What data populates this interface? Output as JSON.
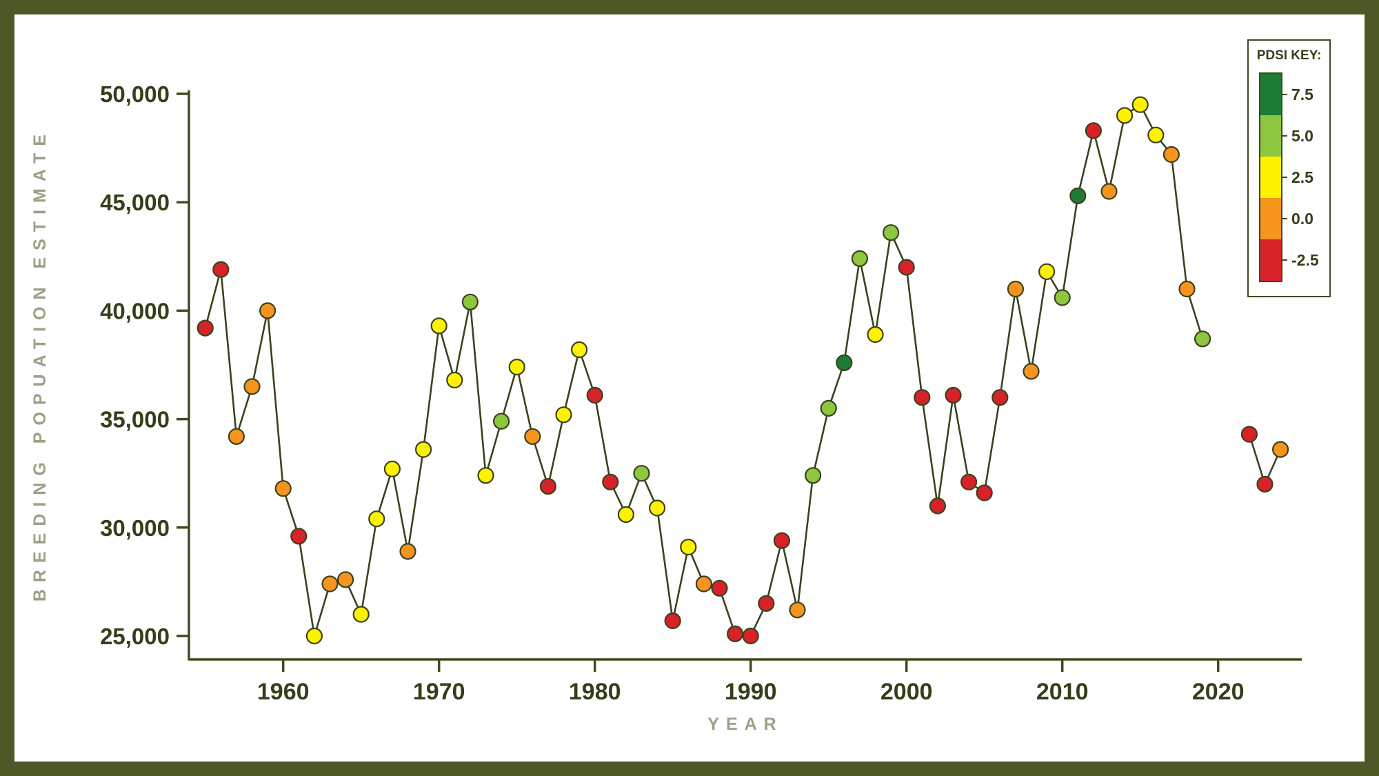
{
  "chart_data": {
    "type": "line",
    "xlabel": "YEAR",
    "ylabel": "BREEDING POPUATION ESTIMATE",
    "xlim": [
      1954,
      2025
    ],
    "ylim": [
      24000,
      51000
    ],
    "grid": false,
    "x_ticks": [
      1960,
      1970,
      1980,
      1990,
      2000,
      2010,
      2020
    ],
    "x_tick_labels": [
      "1960",
      "1970",
      "1980",
      "1990",
      "2000",
      "2010",
      "2020"
    ],
    "y_ticks": [
      25000,
      30000,
      35000,
      40000,
      45000,
      50000
    ],
    "y_tick_labels": [
      "25,000",
      "30,000",
      "35,000",
      "40,000",
      "45,000",
      "50,000"
    ],
    "legend": {
      "title": "PDSI KEY:",
      "position": "top-right",
      "entries": [
        {
          "label": "7.5",
          "color": "darkgreen"
        },
        {
          "label": "5.0",
          "color": "lightgreen"
        },
        {
          "label": "2.5",
          "color": "yellow"
        },
        {
          "label": "0.0",
          "color": "orange"
        },
        {
          "label": "-2.5",
          "color": "red"
        }
      ]
    },
    "style": {
      "axis": "#3f4a20",
      "line": "#3a421e",
      "tick_text": "#333f1a",
      "title_text": "#98a287",
      "frame": "#4d5826",
      "palette": {
        "darkgreen": "#1e7b34",
        "lightgreen": "#8dc63f",
        "yellow": "#fff200",
        "orange": "#f7941d",
        "red": "#d7222a"
      }
    },
    "points": [
      {
        "year": 1955,
        "value": 39200,
        "pdsi": "red"
      },
      {
        "year": 1956,
        "value": 41900,
        "pdsi": "red"
      },
      {
        "year": 1957,
        "value": 34200,
        "pdsi": "orange"
      },
      {
        "year": 1958,
        "value": 36500,
        "pdsi": "orange"
      },
      {
        "year": 1959,
        "value": 40000,
        "pdsi": "orange"
      },
      {
        "year": 1960,
        "value": 31800,
        "pdsi": "orange"
      },
      {
        "year": 1961,
        "value": 29600,
        "pdsi": "red"
      },
      {
        "year": 1962,
        "value": 25000,
        "pdsi": "yellow"
      },
      {
        "year": 1963,
        "value": 27400,
        "pdsi": "orange"
      },
      {
        "year": 1964,
        "value": 27600,
        "pdsi": "orange"
      },
      {
        "year": 1965,
        "value": 26000,
        "pdsi": "yellow"
      },
      {
        "year": 1966,
        "value": 30400,
        "pdsi": "yellow"
      },
      {
        "year": 1967,
        "value": 32700,
        "pdsi": "yellow"
      },
      {
        "year": 1968,
        "value": 28900,
        "pdsi": "orange"
      },
      {
        "year": 1969,
        "value": 33600,
        "pdsi": "yellow"
      },
      {
        "year": 1970,
        "value": 39300,
        "pdsi": "yellow"
      },
      {
        "year": 1971,
        "value": 36800,
        "pdsi": "yellow"
      },
      {
        "year": 1972,
        "value": 40400,
        "pdsi": "lightgreen"
      },
      {
        "year": 1973,
        "value": 32400,
        "pdsi": "yellow"
      },
      {
        "year": 1974,
        "value": 34900,
        "pdsi": "lightgreen"
      },
      {
        "year": 1975,
        "value": 37400,
        "pdsi": "yellow"
      },
      {
        "year": 1976,
        "value": 34200,
        "pdsi": "orange"
      },
      {
        "year": 1977,
        "value": 31900,
        "pdsi": "red"
      },
      {
        "year": 1978,
        "value": 35200,
        "pdsi": "yellow"
      },
      {
        "year": 1979,
        "value": 38200,
        "pdsi": "yellow"
      },
      {
        "year": 1980,
        "value": 36100,
        "pdsi": "red"
      },
      {
        "year": 1981,
        "value": 32100,
        "pdsi": "red"
      },
      {
        "year": 1982,
        "value": 30600,
        "pdsi": "yellow"
      },
      {
        "year": 1983,
        "value": 32500,
        "pdsi": "lightgreen"
      },
      {
        "year": 1984,
        "value": 30900,
        "pdsi": "yellow"
      },
      {
        "year": 1985,
        "value": 25700,
        "pdsi": "red"
      },
      {
        "year": 1986,
        "value": 29100,
        "pdsi": "yellow"
      },
      {
        "year": 1987,
        "value": 27400,
        "pdsi": "orange"
      },
      {
        "year": 1988,
        "value": 27200,
        "pdsi": "red"
      },
      {
        "year": 1989,
        "value": 25100,
        "pdsi": "red"
      },
      {
        "year": 1990,
        "value": 25000,
        "pdsi": "red"
      },
      {
        "year": 1991,
        "value": 26500,
        "pdsi": "red"
      },
      {
        "year": 1992,
        "value": 29400,
        "pdsi": "red"
      },
      {
        "year": 1993,
        "value": 26200,
        "pdsi": "orange"
      },
      {
        "year": 1994,
        "value": 32400,
        "pdsi": "lightgreen"
      },
      {
        "year": 1995,
        "value": 35500,
        "pdsi": "lightgreen"
      },
      {
        "year": 1996,
        "value": 37600,
        "pdsi": "darkgreen"
      },
      {
        "year": 1997,
        "value": 42400,
        "pdsi": "lightgreen"
      },
      {
        "year": 1998,
        "value": 38900,
        "pdsi": "yellow"
      },
      {
        "year": 1999,
        "value": 43600,
        "pdsi": "lightgreen"
      },
      {
        "year": 2000,
        "value": 42000,
        "pdsi": "red"
      },
      {
        "year": 2001,
        "value": 36000,
        "pdsi": "red"
      },
      {
        "year": 2002,
        "value": 31000,
        "pdsi": "red"
      },
      {
        "year": 2003,
        "value": 36100,
        "pdsi": "red"
      },
      {
        "year": 2004,
        "value": 32100,
        "pdsi": "red"
      },
      {
        "year": 2005,
        "value": 31600,
        "pdsi": "red"
      },
      {
        "year": 2006,
        "value": 36000,
        "pdsi": "red"
      },
      {
        "year": 2007,
        "value": 41000,
        "pdsi": "orange"
      },
      {
        "year": 2008,
        "value": 37200,
        "pdsi": "orange"
      },
      {
        "year": 2009,
        "value": 41800,
        "pdsi": "yellow"
      },
      {
        "year": 2010,
        "value": 40600,
        "pdsi": "lightgreen"
      },
      {
        "year": 2011,
        "value": 45300,
        "pdsi": "darkgreen"
      },
      {
        "year": 2012,
        "value": 48300,
        "pdsi": "red"
      },
      {
        "year": 2013,
        "value": 45500,
        "pdsi": "orange"
      },
      {
        "year": 2014,
        "value": 49000,
        "pdsi": "yellow"
      },
      {
        "year": 2015,
        "value": 49500,
        "pdsi": "yellow"
      },
      {
        "year": 2016,
        "value": 48100,
        "pdsi": "yellow"
      },
      {
        "year": 2017,
        "value": 47200,
        "pdsi": "orange"
      },
      {
        "year": 2018,
        "value": 41000,
        "pdsi": "orange"
      },
      {
        "year": 2019,
        "value": 38700,
        "pdsi": "lightgreen"
      },
      {
        "year": 2022,
        "value": 34300,
        "pdsi": "red"
      },
      {
        "year": 2023,
        "value": 32000,
        "pdsi": "red"
      },
      {
        "year": 2024,
        "value": 33600,
        "pdsi": "orange"
      }
    ]
  }
}
